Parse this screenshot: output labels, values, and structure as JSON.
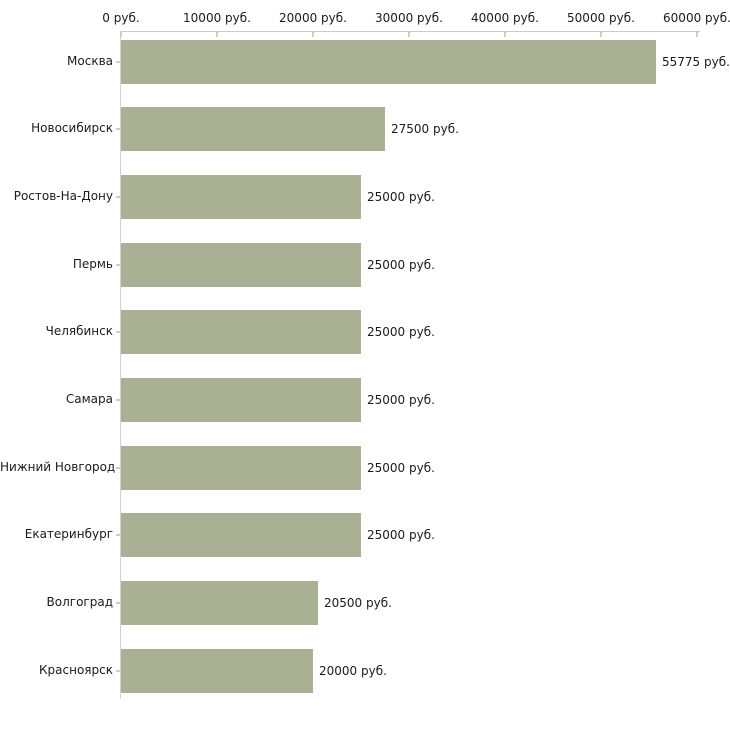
{
  "chart_data": {
    "type": "bar",
    "orientation": "horizontal",
    "title": "",
    "xlabel": "",
    "ylabel": "",
    "xlim": [
      0,
      60000
    ],
    "grid": false,
    "legend_position": "none",
    "x_ticks": [
      {
        "value": 0,
        "label": "0 руб."
      },
      {
        "value": 10000,
        "label": "10000 руб."
      },
      {
        "value": 20000,
        "label": "20000 руб."
      },
      {
        "value": 30000,
        "label": "30000 руб."
      },
      {
        "value": 40000,
        "label": "40000 руб."
      },
      {
        "value": 50000,
        "label": "50000 руб."
      },
      {
        "value": 60000,
        "label": "60000 руб."
      }
    ],
    "categories": [
      "Москва",
      "Новосибирск",
      "Ростов-На-Дону",
      "Пермь",
      "Челябинск",
      "Самара",
      "Нижний Новгород",
      "Екатеринбург",
      "Волгоград",
      "Красноярск"
    ],
    "values": [
      55775,
      27500,
      25000,
      25000,
      25000,
      25000,
      25000,
      25000,
      20500,
      20000
    ],
    "value_labels": [
      "55775 руб.",
      "27500 руб.",
      "25000 руб.",
      "25000 руб.",
      "25000 руб.",
      "25000 руб.",
      "25000 руб.",
      "25000 руб.",
      "20500 руб.",
      "20000 руб."
    ],
    "colors": {
      "bar": "#aab094",
      "axis_line": "#c9c9c9",
      "tick": "#cfd0b8",
      "text": "#1b1b1b",
      "background": "#ffffff"
    }
  }
}
